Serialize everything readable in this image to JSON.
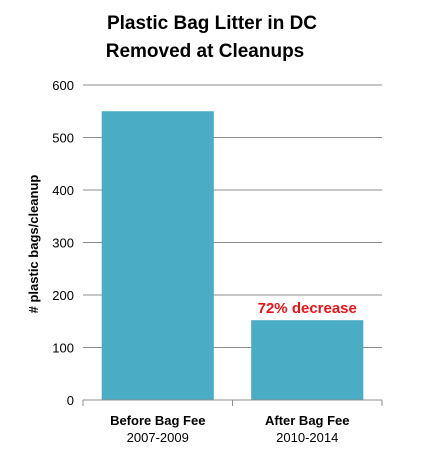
{
  "chart_data": {
    "type": "bar",
    "title_lines": [
      "Plastic Bag Litter in DC",
      "Removed at Cleanups"
    ],
    "xlabel": "",
    "ylabel": "# plastic bags/cleanup",
    "ylim": [
      0,
      600
    ],
    "yticks": [
      0,
      100,
      200,
      300,
      400,
      500,
      600
    ],
    "ytick_labels": [
      "0",
      "100",
      "200",
      "300",
      "400",
      "500",
      "600"
    ],
    "grid": true,
    "legend": "none",
    "categories": [
      {
        "label": "Before Bag Fee",
        "sublabel": "2007-2009"
      },
      {
        "label": "After Bag Fee",
        "sublabel": "2010-2014"
      }
    ],
    "values": [
      550,
      152
    ],
    "annotation": {
      "text": "72% decrease",
      "category_index": 1,
      "color": "#e8141a"
    },
    "bar_color": "#4bacc6",
    "grid_color": "#8c8c8c",
    "axis_color": "#8c8c8c"
  }
}
